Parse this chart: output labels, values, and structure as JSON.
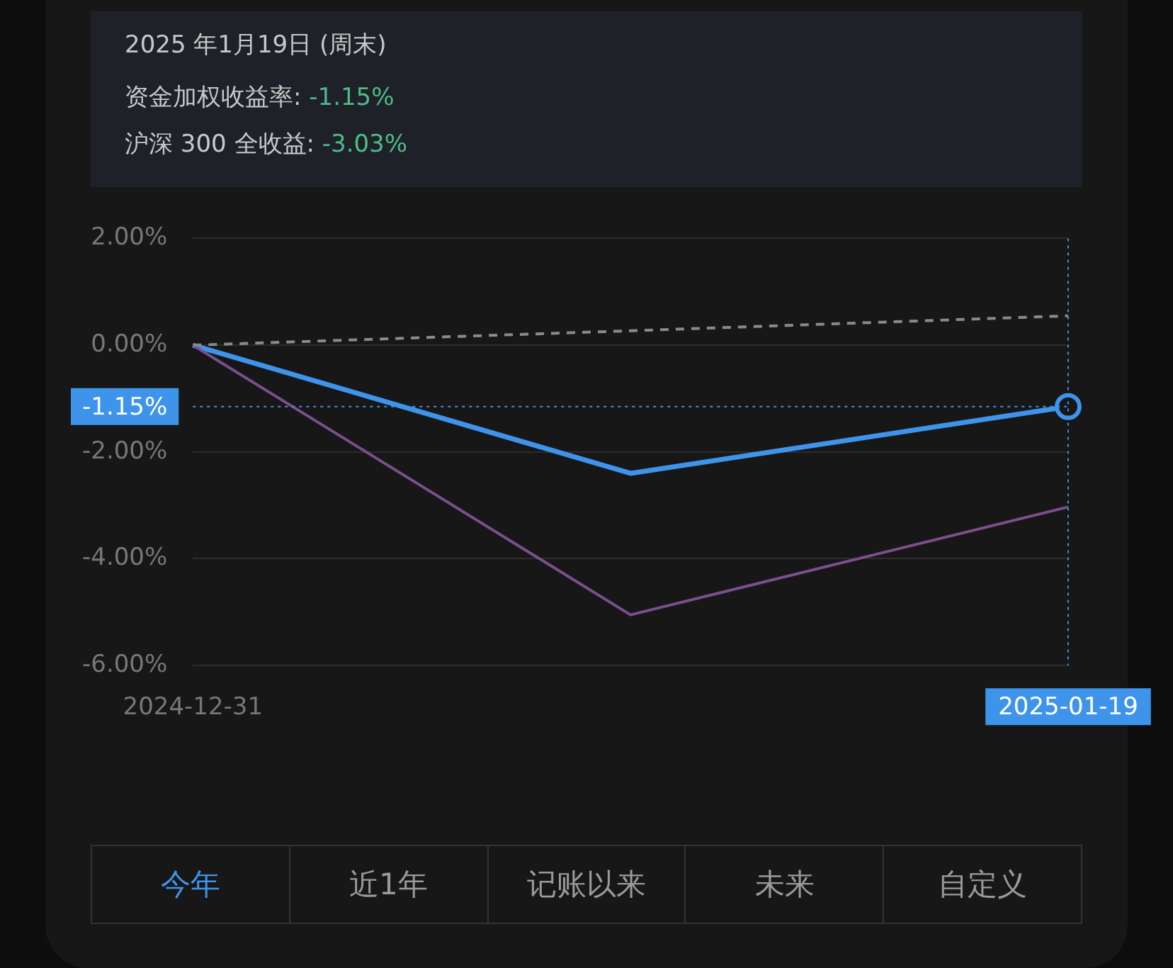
{
  "chart_data": {
    "type": "line",
    "title": "2025 年1月19日 (周末)",
    "annotations": [
      "资金加权收益率: -1.15%",
      "沪深 300 全收益: -3.03%",
      "今年",
      "近1年",
      "记账以来",
      "未来",
      "自定义"
    ],
    "categories": [
      "2024-12-31",
      null,
      "2025-01-19"
    ],
    "series": [
      {
        "color": "#8a8a8a",
        "values": [
          0,
          0.27,
          0.55
        ],
        "line_style": "dashed"
      },
      {
        "color": "#7a4f8c",
        "values": [
          0,
          -5.05,
          -3.03
        ]
      },
      {
        "color": "#3d94ea",
        "values": [
          0,
          -2.4,
          -1.15
        ]
      }
    ],
    "ylim": [
      -6,
      2
    ],
    "yticks": [
      {
        "value": -6,
        "label": "-6.00%"
      },
      {
        "value": -4,
        "label": "-4.00%"
      },
      {
        "value": -2,
        "label": "-2.00%"
      },
      {
        "value": 0,
        "label": "0.00%"
      },
      {
        "value": 2,
        "label": "2.00%"
      }
    ],
    "grid": "y",
    "legend": false,
    "marker": "none",
    "ref_lines": [
      {
        "axis": "y",
        "value": -1.15,
        "label": "-1.15%",
        "color": "#3d94ea",
        "line_style": "dotted"
      },
      {
        "axis": "x",
        "value": "2025-01-19",
        "label": null,
        "color": "#3d94ea",
        "line_style": "dotted"
      }
    ]
  }
}
